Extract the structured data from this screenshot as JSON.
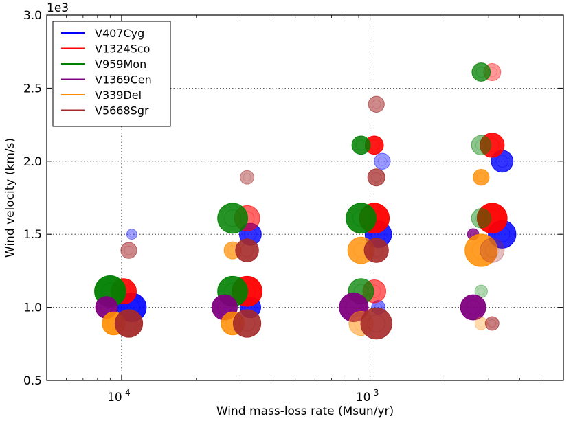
{
  "chart_data": {
    "type": "scatter",
    "xlabel": "Wind mass-loss rate (Msun/yr)",
    "ylabel": "Wind velocity (km/s)",
    "y_offset_label": "1e3",
    "x_scale": "log",
    "xlim": [
      5e-05,
      0.006
    ],
    "ylim": [
      0.5,
      3.0
    ],
    "x_ticks": [
      {
        "value": 0.0001,
        "base": "10",
        "exp": "-4"
      },
      {
        "value": 0.001,
        "base": "10",
        "exp": "-3"
      }
    ],
    "y_ticks": [
      "0.5",
      "1.0",
      "1.5",
      "2.0",
      "2.5",
      "3.0"
    ],
    "grid": true,
    "legend_position": "upper-left",
    "series": [
      {
        "name": "V407Cyg",
        "color": "#0000ff",
        "points": [
          {
            "x": 0.00011,
            "y": 1.0,
            "size": 1.0,
            "alpha": 0.9
          },
          {
            "x": 0.00011,
            "y": 1.5,
            "size": 0.2,
            "alpha": 0.35
          },
          {
            "x": 0.00033,
            "y": 1.0,
            "size": 0.65,
            "alpha": 0.85
          },
          {
            "x": 0.00033,
            "y": 1.5,
            "size": 0.7,
            "alpha": 0.8
          },
          {
            "x": 0.00108,
            "y": 1.0,
            "size": 0.35,
            "alpha": 0.5
          },
          {
            "x": 0.00108,
            "y": 1.5,
            "size": 0.9,
            "alpha": 0.85
          },
          {
            "x": 0.00112,
            "y": 2.0,
            "size": 0.45,
            "alpha": 0.4
          },
          {
            "x": 0.0034,
            "y": 1.5,
            "size": 0.95,
            "alpha": 0.85
          },
          {
            "x": 0.0034,
            "y": 2.0,
            "size": 0.7,
            "alpha": 0.8
          }
        ]
      },
      {
        "name": "V1324Sco",
        "color": "#ff0000",
        "points": [
          {
            "x": 0.000102,
            "y": 1.11,
            "size": 0.85,
            "alpha": 0.9
          },
          {
            "x": 0.00032,
            "y": 1.11,
            "size": 1.05,
            "alpha": 0.95
          },
          {
            "x": 0.00032,
            "y": 1.61,
            "size": 0.85,
            "alpha": 0.6
          },
          {
            "x": 0.00104,
            "y": 1.11,
            "size": 0.75,
            "alpha": 0.6
          },
          {
            "x": 0.00104,
            "y": 1.61,
            "size": 1.05,
            "alpha": 0.95
          },
          {
            "x": 0.00104,
            "y": 2.11,
            "size": 0.55,
            "alpha": 0.9
          },
          {
            "x": 0.0031,
            "y": 1.61,
            "size": 1.05,
            "alpha": 0.95
          },
          {
            "x": 0.0031,
            "y": 2.11,
            "size": 0.8,
            "alpha": 0.9
          },
          {
            "x": 0.0031,
            "y": 2.61,
            "size": 0.5,
            "alpha": 0.4
          }
        ]
      },
      {
        "name": "V959Mon",
        "color": "#008000",
        "points": [
          {
            "x": 9e-05,
            "y": 1.11,
            "size": 1.1,
            "alpha": 0.95
          },
          {
            "x": 0.00028,
            "y": 1.11,
            "size": 1.05,
            "alpha": 0.9
          },
          {
            "x": 0.00028,
            "y": 1.61,
            "size": 1.05,
            "alpha": 0.85
          },
          {
            "x": 0.00092,
            "y": 1.11,
            "size": 0.85,
            "alpha": 0.75
          },
          {
            "x": 0.00092,
            "y": 1.61,
            "size": 1.05,
            "alpha": 0.9
          },
          {
            "x": 0.00092,
            "y": 2.11,
            "size": 0.55,
            "alpha": 0.85
          },
          {
            "x": 0.0028,
            "y": 1.11,
            "size": 0.3,
            "alpha": 0.3
          },
          {
            "x": 0.0028,
            "y": 1.61,
            "size": 0.6,
            "alpha": 0.45
          },
          {
            "x": 0.0028,
            "y": 2.11,
            "size": 0.6,
            "alpha": 0.45
          },
          {
            "x": 0.0028,
            "y": 2.61,
            "size": 0.55,
            "alpha": 0.75
          }
        ]
      },
      {
        "name": "V1369Cen",
        "color": "#800080",
        "points": [
          {
            "x": 8.7e-05,
            "y": 1.0,
            "size": 0.7,
            "alpha": 0.95
          },
          {
            "x": 0.00026,
            "y": 1.0,
            "size": 0.85,
            "alpha": 0.95
          },
          {
            "x": 0.00086,
            "y": 1.0,
            "size": 1.0,
            "alpha": 0.95
          },
          {
            "x": 0.0026,
            "y": 1.0,
            "size": 0.85,
            "alpha": 0.95
          },
          {
            "x": 0.0026,
            "y": 1.5,
            "size": 0.25,
            "alpha": 0.8
          }
        ]
      },
      {
        "name": "V339Del",
        "color": "#ff8c00",
        "points": [
          {
            "x": 9.3e-05,
            "y": 0.89,
            "size": 0.75,
            "alpha": 0.9
          },
          {
            "x": 0.00028,
            "y": 0.89,
            "size": 0.75,
            "alpha": 0.85
          },
          {
            "x": 0.00028,
            "y": 1.39,
            "size": 0.5,
            "alpha": 0.7
          },
          {
            "x": 0.00092,
            "y": 0.89,
            "size": 0.8,
            "alpha": 0.5
          },
          {
            "x": 0.00092,
            "y": 1.39,
            "size": 0.9,
            "alpha": 0.8
          },
          {
            "x": 0.0028,
            "y": 0.89,
            "size": 0.3,
            "alpha": 0.3
          },
          {
            "x": 0.0028,
            "y": 1.39,
            "size": 1.15,
            "alpha": 0.85
          },
          {
            "x": 0.0028,
            "y": 1.89,
            "size": 0.45,
            "alpha": 0.8
          }
        ]
      },
      {
        "name": "V5668Sgr",
        "color": "#a52a2a",
        "points": [
          {
            "x": 0.000107,
            "y": 0.89,
            "size": 0.95,
            "alpha": 0.95
          },
          {
            "x": 0.000107,
            "y": 1.39,
            "size": 0.45,
            "alpha": 0.55
          },
          {
            "x": 0.00032,
            "y": 0.89,
            "size": 0.95,
            "alpha": 0.9
          },
          {
            "x": 0.00032,
            "y": 1.39,
            "size": 0.75,
            "alpha": 0.9
          },
          {
            "x": 0.00032,
            "y": 1.89,
            "size": 0.35,
            "alpha": 0.45
          },
          {
            "x": 0.00106,
            "y": 0.89,
            "size": 1.1,
            "alpha": 0.9
          },
          {
            "x": 0.00106,
            "y": 1.39,
            "size": 0.8,
            "alpha": 0.9
          },
          {
            "x": 0.00106,
            "y": 1.89,
            "size": 0.5,
            "alpha": 0.75
          },
          {
            "x": 0.00106,
            "y": 2.39,
            "size": 0.45,
            "alpha": 0.55
          },
          {
            "x": 0.0031,
            "y": 0.89,
            "size": 0.35,
            "alpha": 0.6
          },
          {
            "x": 0.0031,
            "y": 1.39,
            "size": 0.8,
            "alpha": 0.3
          }
        ]
      }
    ]
  }
}
